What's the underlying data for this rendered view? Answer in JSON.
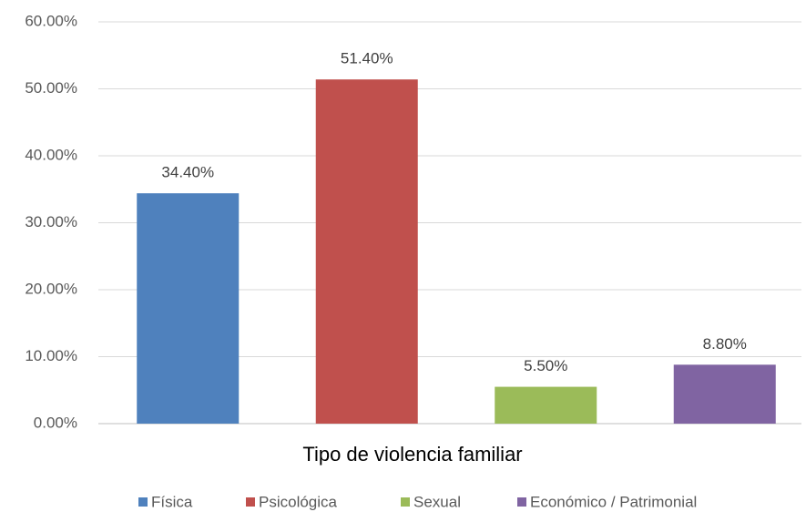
{
  "chart_data": {
    "type": "bar",
    "categories": [
      "Física",
      "Psicológica",
      "Sexual",
      "Económico / Patrimonial"
    ],
    "values": [
      34.4,
      51.4,
      5.5,
      8.8
    ],
    "value_labels": [
      "34.40%",
      "51.40%",
      "5.50%",
      "8.80%"
    ],
    "colors": [
      "#4f81bd",
      "#c0504d",
      "#9bbb59",
      "#8064a2"
    ],
    "x_label": "Tipo de violencia familiar",
    "ylim": [
      0,
      60
    ],
    "yticks": [
      {
        "value": 0,
        "label": "0.00%"
      },
      {
        "value": 10,
        "label": "10.00%"
      },
      {
        "value": 20,
        "label": "20.00%"
      },
      {
        "value": 30,
        "label": "30.00%"
      },
      {
        "value": 40,
        "label": "40.00%"
      },
      {
        "value": 50,
        "label": "50.00%"
      },
      {
        "value": 60,
        "label": "60.00%"
      }
    ],
    "grid": true,
    "legend": "bottom"
  }
}
